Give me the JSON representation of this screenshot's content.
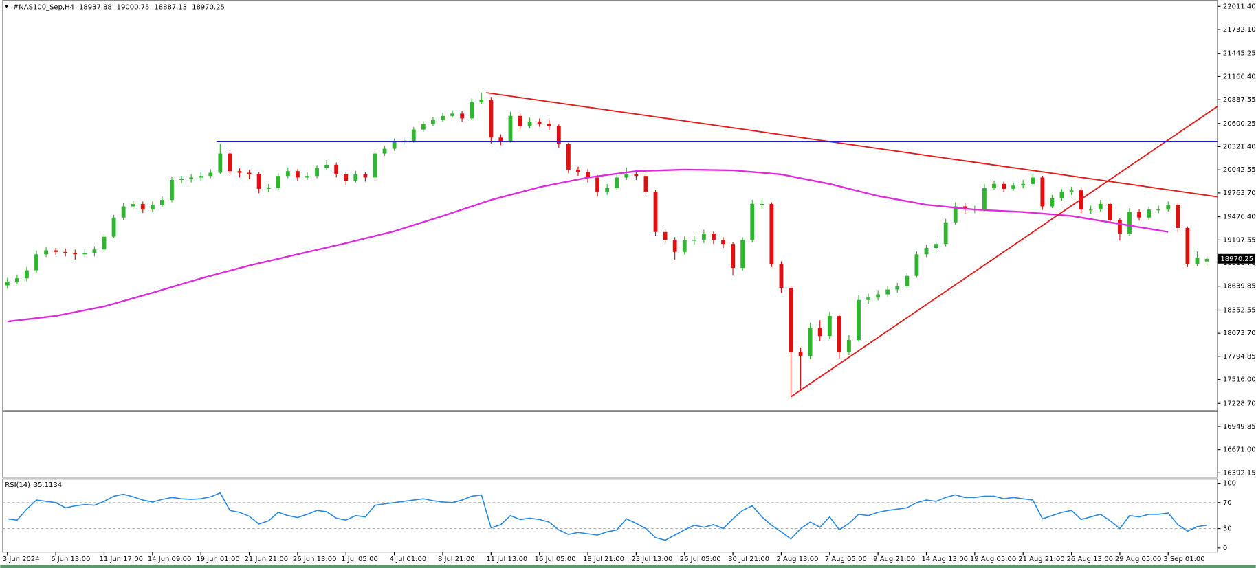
{
  "chart_data": [
    {
      "type": "candlestick",
      "title": "#NAS100_Sep,H4",
      "categories": [
        "3 Jun 2024",
        null,
        null,
        null,
        null,
        "6 Jun 13:00",
        null,
        null,
        null,
        null,
        "11 Jun 17:00",
        null,
        null,
        null,
        null,
        "14 Jun 09:00",
        null,
        null,
        null,
        null,
        "19 Jun 01:00",
        null,
        null,
        null,
        null,
        "21 Jun 21:00",
        null,
        null,
        null,
        null,
        "26 Jun 13:00",
        null,
        null,
        null,
        null,
        "1 Jul 05:00",
        null,
        null,
        null,
        null,
        "4 Jul 01:00",
        null,
        null,
        null,
        null,
        "8 Jul 21:00",
        null,
        null,
        null,
        null,
        "11 Jul 13:00",
        null,
        null,
        null,
        null,
        "16 Jul 05:00",
        null,
        null,
        null,
        null,
        "18 Jul 21:00",
        null,
        null,
        null,
        null,
        "23 Jul 13:00",
        null,
        null,
        null,
        null,
        "26 Jul 05:00",
        null,
        null,
        null,
        null,
        "30 Jul 21:00",
        null,
        null,
        null,
        null,
        "2 Aug 13:00",
        null,
        null,
        null,
        null,
        "7 Aug 05:00",
        null,
        null,
        null,
        null,
        "9 Aug 21:00",
        null,
        null,
        null,
        null,
        "14 Aug 13:00",
        null,
        null,
        null,
        null,
        "19 Aug 05:00",
        null,
        null,
        null,
        null,
        "21 Aug 21:00",
        null,
        null,
        null,
        null,
        "26 Aug 13:00",
        null,
        null,
        null,
        null,
        "29 Aug 05:00",
        null,
        null,
        null,
        null,
        "3 Sep 01:00",
        null,
        null,
        null,
        null
      ],
      "open": [
        18650,
        18696,
        18735,
        18831,
        19024,
        19072,
        19053,
        19043,
        19024,
        19043,
        19082,
        19236,
        19467,
        19602,
        19630,
        19563,
        19621,
        19679,
        19920,
        19930,
        19949,
        19968,
        20007,
        20238,
        20026,
        20007,
        19987,
        19814,
        19823,
        19968,
        20026,
        19949,
        19968,
        20064,
        20103,
        19987,
        19910,
        19987,
        19949,
        20238,
        20296,
        20392,
        20392,
        20527,
        20594,
        20643,
        20691,
        20720,
        20662,
        20855,
        20884,
        20431,
        20392,
        20691,
        20566,
        20624,
        20595,
        20566,
        20354,
        20045,
        20016,
        19949,
        19775,
        19823,
        19949,
        19987,
        19968,
        19775,
        19293,
        19197,
        19053,
        19197,
        19197,
        19274,
        19197,
        19149,
        18860,
        19197,
        19631,
        19631,
        18908,
        18619,
        17848,
        17800,
        18137,
        18040,
        18281,
        17848,
        17992,
        18474,
        18503,
        18542,
        18600,
        18638,
        18764,
        19024,
        19101,
        19149,
        19409,
        19602,
        19563,
        19563,
        19823,
        19872,
        19814,
        19852,
        19872,
        19949,
        19602,
        19698,
        19775,
        19794,
        19563,
        19563,
        19631,
        19438,
        19274,
        19535,
        19467,
        19563,
        19563,
        19621,
        19342,
        18908,
        18937.88
      ],
      "high": [
        18740,
        18780,
        18870,
        19070,
        19110,
        19100,
        19095,
        19080,
        19090,
        19120,
        19270,
        19500,
        19640,
        19670,
        19660,
        19660,
        19720,
        19960,
        19970,
        19990,
        20010,
        20050,
        20354,
        20260,
        20060,
        20040,
        20010,
        19870,
        20000,
        20070,
        20050,
        20010,
        20100,
        20160,
        20130,
        20010,
        20030,
        20020,
        20270,
        20330,
        20420,
        20430,
        20560,
        20630,
        20680,
        20730,
        20760,
        20750,
        20900,
        20971,
        20920,
        20470,
        20740,
        20720,
        20670,
        20660,
        20640,
        20590,
        20370,
        20080,
        20050,
        19980,
        19870,
        19990,
        20070,
        20030,
        19990,
        19800,
        19330,
        19230,
        19240,
        19250,
        19320,
        19300,
        19230,
        19170,
        19230,
        19680,
        19680,
        19650,
        18940,
        18640,
        17900,
        18200,
        18230,
        18330,
        18300,
        18050,
        18530,
        18550,
        18590,
        18640,
        18680,
        18800,
        19060,
        19140,
        19190,
        19450,
        19650,
        19640,
        19610,
        19870,
        19910,
        19900,
        19890,
        19920,
        19990,
        19970,
        19740,
        19810,
        19840,
        19820,
        19610,
        19680,
        19650,
        19460,
        19580,
        19570,
        19600,
        19610,
        19660,
        19640,
        19360,
        19060,
        19000.75
      ],
      "low": [
        18610,
        18660,
        18700,
        18800,
        18990,
        19010,
        19000,
        18960,
        18990,
        19000,
        19050,
        19220,
        19440,
        19570,
        19520,
        19530,
        19590,
        19650,
        19880,
        19890,
        19910,
        19940,
        19990,
        19990,
        19950,
        19930,
        19760,
        19770,
        19800,
        19940,
        19910,
        19920,
        19940,
        20040,
        19950,
        19860,
        19890,
        19900,
        19930,
        20210,
        20270,
        20350,
        20370,
        20500,
        20570,
        20620,
        20670,
        20620,
        20640,
        20830,
        20360,
        20340,
        20370,
        20530,
        20540,
        20560,
        20520,
        20310,
        20000,
        19970,
        19890,
        19720,
        19740,
        19800,
        19920,
        19920,
        19730,
        19250,
        19150,
        18960,
        19020,
        19140,
        19160,
        19150,
        19100,
        18770,
        18830,
        19170,
        19580,
        18870,
        18560,
        17318,
        17380,
        17760,
        17980,
        18000,
        17770,
        17810,
        17970,
        18430,
        18470,
        18510,
        18560,
        18610,
        18740,
        18990,
        19040,
        19120,
        19380,
        19510,
        19520,
        19540,
        19800,
        19780,
        19790,
        19820,
        19850,
        19560,
        19580,
        19670,
        19740,
        19520,
        19510,
        19540,
        19400,
        19190,
        19250,
        19430,
        19440,
        19520,
        19540,
        19290,
        18870,
        18880,
        18887.13
      ],
      "close": [
        18696,
        18735,
        18831,
        19024,
        19072,
        19053,
        19043,
        19024,
        19043,
        19082,
        19236,
        19467,
        19602,
        19630,
        19563,
        19621,
        19679,
        19920,
        19930,
        19949,
        19968,
        20007,
        20238,
        20026,
        20007,
        19987,
        19814,
        19823,
        19968,
        20026,
        19949,
        19968,
        20064,
        20103,
        19987,
        19910,
        19987,
        19949,
        20238,
        20296,
        20392,
        20392,
        20527,
        20594,
        20643,
        20691,
        20720,
        20662,
        20855,
        20884,
        20431,
        20392,
        20691,
        20566,
        20624,
        20595,
        20566,
        20354,
        20045,
        20016,
        19949,
        19775,
        19823,
        19949,
        19987,
        19968,
        19775,
        19293,
        19197,
        19053,
        19197,
        19197,
        19274,
        19197,
        19149,
        18860,
        19197,
        19631,
        19631,
        18908,
        18619,
        17848,
        17800,
        18137,
        18040,
        18281,
        17848,
        17992,
        18474,
        18503,
        18542,
        18600,
        18638,
        18764,
        19024,
        19101,
        19149,
        19409,
        19602,
        19563,
        19563,
        19823,
        19872,
        19814,
        19852,
        19872,
        19949,
        19602,
        19698,
        19775,
        19794,
        19563,
        19563,
        19631,
        19438,
        19274,
        19535,
        19467,
        19563,
        19563,
        19621,
        19342,
        18908,
        18986,
        18970.25
      ],
      "bull_color": "#2fb52f",
      "bear_color": "#e01010",
      "moving_average": {
        "color": "#e028e0",
        "x": [
          0,
          5,
          10,
          15,
          20,
          25,
          30,
          35,
          40,
          45,
          50,
          55,
          60,
          65,
          70,
          75,
          80,
          85,
          90,
          95,
          100,
          105,
          110,
          115,
          120
        ],
        "values": [
          18214,
          18282,
          18397,
          18561,
          18734,
          18889,
          19024,
          19159,
          19303,
          19486,
          19679,
          19833,
          19949,
          20026,
          20045,
          20036,
          19987,
          19872,
          19727,
          19621,
          19563,
          19534,
          19486,
          19390,
          19294
        ]
      },
      "trendlines": [
        {
          "color": "#e41a1a",
          "x": [
            49.5,
            125.1
          ],
          "y": [
            20971,
            19717
          ]
        },
        {
          "color": "#e41a1a",
          "x": [
            81,
            125.1
          ],
          "y": [
            17308,
            20807
          ]
        },
        {
          "color": "#1f1fd0",
          "x": [
            21.6,
            125.1
          ],
          "y": [
            20383,
            20383
          ]
        },
        {
          "color": "#000000",
          "x": [
            -0.75,
            125.1
          ],
          "y": [
            17135,
            17135
          ]
        }
      ],
      "ylim": [
        16334,
        22088
      ],
      "yticks": [
        {
          "value": 22011.4,
          "label": "22011.40"
        },
        {
          "value": 21732.1,
          "label": "21732.10"
        },
        {
          "value": 21445.25,
          "label": "21445.25"
        },
        {
          "value": 21166.4,
          "label": "21166.40"
        },
        {
          "value": 20887.55,
          "label": "20887.55"
        },
        {
          "value": 20600.25,
          "label": "20600.25"
        },
        {
          "value": 20321.4,
          "label": "20321.40"
        },
        {
          "value": 20042.55,
          "label": "20042.55"
        },
        {
          "value": 19763.7,
          "label": "19763.70"
        },
        {
          "value": 19476.4,
          "label": "19476.40"
        },
        {
          "value": 19197.55,
          "label": "19197.55"
        },
        {
          "value": 18918.7,
          "label": "18918.70"
        },
        {
          "value": 18639.85,
          "label": "18639.85"
        },
        {
          "value": 18352.55,
          "label": "18352.55"
        },
        {
          "value": 18073.7,
          "label": "18073.70"
        },
        {
          "value": 17794.85,
          "label": "17794.85"
        },
        {
          "value": 17516,
          "label": "17516.00"
        },
        {
          "value": 17228.7,
          "label": "17228.70"
        },
        {
          "value": 16949.85,
          "label": "16949.85"
        },
        {
          "value": 16671,
          "label": "16671.00"
        },
        {
          "value": 16392.15,
          "label": "16392.15"
        }
      ],
      "grid": false
    },
    {
      "type": "line",
      "title": "RSI(14)",
      "color": "#2a8ae0",
      "values": [
        45,
        43,
        60,
        74,
        72,
        70,
        62,
        65,
        67,
        66,
        72,
        80,
        83,
        79,
        74,
        71,
        75,
        78,
        76,
        75,
        76,
        79,
        85,
        58,
        55,
        49,
        37,
        42,
        55,
        50,
        47,
        52,
        58,
        56,
        46,
        43,
        50,
        48,
        66,
        68,
        70,
        72,
        74,
        76,
        73,
        71,
        70,
        74,
        80,
        82,
        31,
        36,
        50,
        44,
        46,
        44,
        40,
        28,
        21,
        24,
        22,
        20,
        25,
        28,
        45,
        38,
        30,
        16,
        12,
        20,
        28,
        35,
        32,
        36,
        30,
        45,
        58,
        65,
        48,
        35,
        25,
        14,
        30,
        40,
        32,
        48,
        28,
        38,
        52,
        50,
        55,
        58,
        60,
        62,
        70,
        74,
        72,
        78,
        82,
        78,
        78,
        80,
        80,
        76,
        78,
        76,
        74,
        45,
        50,
        55,
        58,
        44,
        48,
        52,
        42,
        30,
        50,
        48,
        52,
        52,
        54,
        36,
        26,
        33,
        35.1134
      ],
      "ylim": [
        0,
        100
      ],
      "yticks": [
        0,
        30,
        70,
        100
      ],
      "grid": true
    }
  ]
}
